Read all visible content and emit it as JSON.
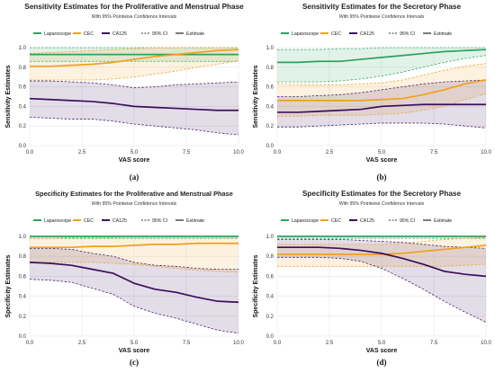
{
  "chart_data": [
    {
      "type": "line",
      "panel_label": "(a)",
      "title": "Sensitivity Estimates for the Proliferative and Menstrual Phase",
      "subtitle": "With 95% Pointwise Confidence Intervals",
      "xlabel": "VAS score",
      "ylabel": "Sensitivity Estimates",
      "xlim": [
        0,
        10
      ],
      "ylim": [
        0,
        1
      ],
      "x_ticks": [
        "0.0",
        "2.5",
        "5.0",
        "7.5",
        "10.0"
      ],
      "y_ticks": [
        "0.0",
        "0.2",
        "0.4",
        "0.6",
        "0.8",
        "1.0"
      ],
      "grid": true,
      "legend_position": "top",
      "legend": [
        "Laparoscope",
        "CEC",
        "CA125",
        "95% CI",
        "Estimate"
      ],
      "x": [
        0,
        1,
        2,
        3,
        4,
        5,
        6,
        7,
        8,
        9,
        10
      ],
      "series": [
        {
          "name": "Laparoscope",
          "color": "#2ca25f",
          "values": [
            0.93,
            0.93,
            0.93,
            0.93,
            0.93,
            0.93,
            0.93,
            0.93,
            0.93,
            0.93,
            0.93
          ],
          "lower": [
            0.86,
            0.86,
            0.86,
            0.86,
            0.86,
            0.86,
            0.86,
            0.86,
            0.86,
            0.86,
            0.86
          ],
          "upper": [
            1.0,
            1.0,
            1.0,
            1.0,
            1.0,
            1.0,
            1.0,
            1.0,
            1.0,
            1.0,
            1.0
          ]
        },
        {
          "name": "CEC",
          "color": "#f0a020",
          "values": [
            0.81,
            0.81,
            0.82,
            0.83,
            0.85,
            0.88,
            0.91,
            0.93,
            0.95,
            0.97,
            0.98
          ],
          "lower": [
            0.67,
            0.67,
            0.67,
            0.67,
            0.68,
            0.7,
            0.73,
            0.76,
            0.8,
            0.83,
            0.87
          ],
          "upper": [
            0.94,
            0.95,
            0.96,
            0.97,
            0.98,
            0.99,
            1.0,
            1.0,
            1.0,
            1.0,
            1.0
          ]
        },
        {
          "name": "CA125",
          "color": "#3a0f5c",
          "values": [
            0.48,
            0.47,
            0.46,
            0.45,
            0.43,
            0.4,
            0.39,
            0.38,
            0.37,
            0.36,
            0.36
          ],
          "lower": [
            0.29,
            0.28,
            0.27,
            0.27,
            0.25,
            0.22,
            0.2,
            0.18,
            0.16,
            0.13,
            0.11
          ],
          "upper": [
            0.66,
            0.66,
            0.65,
            0.64,
            0.62,
            0.59,
            0.6,
            0.62,
            0.63,
            0.64,
            0.65
          ]
        }
      ]
    },
    {
      "type": "line",
      "panel_label": "(b)",
      "title": "Sensitivity Estimates for the Secretory Phase",
      "subtitle": "With 95% Pointwise Confidence Intervals",
      "xlabel": "VAS score",
      "ylabel": "Sensitivity Estimates",
      "xlim": [
        0,
        10
      ],
      "ylim": [
        0,
        1
      ],
      "x_ticks": [
        "0.0",
        "2.5",
        "5.0",
        "7.5",
        "10.0"
      ],
      "y_ticks": [
        "0.0",
        "0.2",
        "0.4",
        "0.6",
        "0.8",
        "1.0"
      ],
      "grid": true,
      "legend_position": "top",
      "legend": [
        "Laparoscope",
        "CEC",
        "CA125",
        "95% CI",
        "Estimate"
      ],
      "x": [
        0,
        1,
        2,
        3,
        4,
        5,
        6,
        7,
        8,
        9,
        10
      ],
      "series": [
        {
          "name": "Laparoscope",
          "color": "#2ca25f",
          "values": [
            0.85,
            0.85,
            0.86,
            0.86,
            0.88,
            0.9,
            0.92,
            0.94,
            0.96,
            0.97,
            0.98
          ],
          "lower": [
            0.65,
            0.65,
            0.65,
            0.66,
            0.68,
            0.71,
            0.75,
            0.8,
            0.85,
            0.89,
            0.92
          ],
          "upper": [
            0.98,
            0.98,
            0.98,
            0.99,
            0.99,
            1.0,
            1.0,
            1.0,
            1.0,
            1.0,
            1.0
          ]
        },
        {
          "name": "CEC",
          "color": "#f0a020",
          "values": [
            0.46,
            0.46,
            0.46,
            0.46,
            0.46,
            0.47,
            0.48,
            0.52,
            0.57,
            0.63,
            0.67
          ],
          "lower": [
            0.3,
            0.3,
            0.31,
            0.31,
            0.31,
            0.32,
            0.33,
            0.36,
            0.4,
            0.47,
            0.53
          ],
          "upper": [
            0.63,
            0.62,
            0.62,
            0.62,
            0.63,
            0.64,
            0.67,
            0.72,
            0.77,
            0.81,
            0.84
          ]
        },
        {
          "name": "CA125",
          "color": "#3a0f5c",
          "values": [
            0.34,
            0.34,
            0.35,
            0.36,
            0.37,
            0.4,
            0.41,
            0.42,
            0.42,
            0.42,
            0.42
          ],
          "lower": [
            0.19,
            0.19,
            0.2,
            0.21,
            0.22,
            0.23,
            0.23,
            0.23,
            0.22,
            0.2,
            0.18
          ],
          "upper": [
            0.5,
            0.5,
            0.51,
            0.52,
            0.54,
            0.57,
            0.6,
            0.63,
            0.65,
            0.66,
            0.67
          ]
        }
      ]
    },
    {
      "type": "line",
      "panel_label": "(c)",
      "title": "Specificity Estimates for the Proliferative and Menstrual Phase",
      "subtitle": "With 95% Pointwise Confidence Intervals",
      "xlabel": "VAS score",
      "ylabel": "Specificity Estimates",
      "xlim": [
        0,
        10
      ],
      "ylim": [
        0,
        1
      ],
      "x_ticks": [
        "0.0",
        "2.5",
        "5.0",
        "7.5",
        "10.0"
      ],
      "y_ticks": [
        "0.0",
        "0.2",
        "0.4",
        "0.6",
        "0.8",
        "1.0"
      ],
      "grid": true,
      "legend_position": "top",
      "legend": [
        "Laparoscope",
        "CEC",
        "CA125",
        "95% CI",
        "Estimate"
      ],
      "x": [
        0,
        1,
        2,
        3,
        4,
        5,
        6,
        7,
        8,
        9,
        10
      ],
      "series": [
        {
          "name": "Laparoscope",
          "color": "#2ca25f",
          "values": [
            1.0,
            1.0,
            1.0,
            1.0,
            1.0,
            1.0,
            1.0,
            1.0,
            1.0,
            1.0,
            1.0
          ],
          "lower": [
            0.98,
            0.98,
            0.98,
            0.98,
            0.98,
            0.98,
            0.98,
            0.98,
            0.98,
            0.98,
            0.98
          ],
          "upper": [
            1.0,
            1.0,
            1.0,
            1.0,
            1.0,
            1.0,
            1.0,
            1.0,
            1.0,
            1.0,
            1.0
          ]
        },
        {
          "name": "CEC",
          "color": "#f0a020",
          "values": [
            0.89,
            0.89,
            0.89,
            0.9,
            0.9,
            0.91,
            0.92,
            0.92,
            0.93,
            0.93,
            0.93
          ],
          "lower": [
            0.74,
            0.74,
            0.74,
            0.74,
            0.73,
            0.72,
            0.7,
            0.68,
            0.66,
            0.65,
            0.64
          ],
          "upper": [
            0.98,
            0.98,
            0.99,
            0.99,
            0.99,
            1.0,
            1.0,
            1.0,
            1.0,
            1.0,
            1.0
          ]
        },
        {
          "name": "CA125",
          "color": "#3a0f5c",
          "values": [
            0.74,
            0.73,
            0.71,
            0.67,
            0.63,
            0.53,
            0.47,
            0.44,
            0.39,
            0.35,
            0.34
          ],
          "lower": [
            0.57,
            0.56,
            0.54,
            0.48,
            0.42,
            0.3,
            0.23,
            0.18,
            0.12,
            0.06,
            0.03
          ],
          "upper": [
            0.88,
            0.88,
            0.87,
            0.83,
            0.8,
            0.74,
            0.71,
            0.7,
            0.68,
            0.67,
            0.67
          ]
        }
      ]
    },
    {
      "type": "line",
      "panel_label": "(d)",
      "title": "Specificity Estimates for the Secretory Phase",
      "subtitle": "With 95% Pointwise Confidence Intervals",
      "xlabel": "VAS score",
      "ylabel": "Specificity Estimates",
      "xlim": [
        0,
        10
      ],
      "ylim": [
        0,
        1
      ],
      "x_ticks": [
        "0.0",
        "2.5",
        "5.0",
        "7.5",
        "10.0"
      ],
      "y_ticks": [
        "0.0",
        "0.2",
        "0.4",
        "0.6",
        "0.8",
        "1.0"
      ],
      "grid": true,
      "legend_position": "top",
      "legend": [
        "Laparoscope",
        "CEC",
        "CA125",
        "95% CI",
        "Estimate"
      ],
      "x": [
        0,
        1,
        2,
        3,
        4,
        5,
        6,
        7,
        8,
        9,
        10
      ],
      "series": [
        {
          "name": "Laparoscope",
          "color": "#2ca25f",
          "values": [
            1.0,
            1.0,
            1.0,
            1.0,
            1.0,
            1.0,
            1.0,
            1.0,
            1.0,
            1.0,
            1.0
          ],
          "lower": [
            0.98,
            0.98,
            0.98,
            0.98,
            0.98,
            0.98,
            0.98,
            0.98,
            0.98,
            0.98,
            0.98
          ],
          "upper": [
            1.0,
            1.0,
            1.0,
            1.0,
            1.0,
            1.0,
            1.0,
            1.0,
            1.0,
            1.0,
            1.0
          ]
        },
        {
          "name": "CEC",
          "color": "#f0a020",
          "values": [
            0.82,
            0.82,
            0.82,
            0.82,
            0.82,
            0.82,
            0.83,
            0.85,
            0.87,
            0.89,
            0.91
          ],
          "lower": [
            0.7,
            0.7,
            0.7,
            0.7,
            0.7,
            0.7,
            0.7,
            0.7,
            0.7,
            0.71,
            0.72
          ],
          "upper": [
            0.92,
            0.92,
            0.92,
            0.92,
            0.92,
            0.92,
            0.93,
            0.95,
            0.97,
            0.98,
            0.99
          ]
        },
        {
          "name": "CA125",
          "color": "#3a0f5c",
          "values": [
            0.89,
            0.89,
            0.89,
            0.88,
            0.86,
            0.83,
            0.78,
            0.72,
            0.65,
            0.62,
            0.6
          ],
          "lower": [
            0.79,
            0.79,
            0.79,
            0.78,
            0.75,
            0.68,
            0.58,
            0.47,
            0.35,
            0.24,
            0.14
          ],
          "upper": [
            0.97,
            0.97,
            0.97,
            0.97,
            0.96,
            0.95,
            0.94,
            0.92,
            0.9,
            0.89,
            0.88
          ]
        }
      ]
    }
  ]
}
